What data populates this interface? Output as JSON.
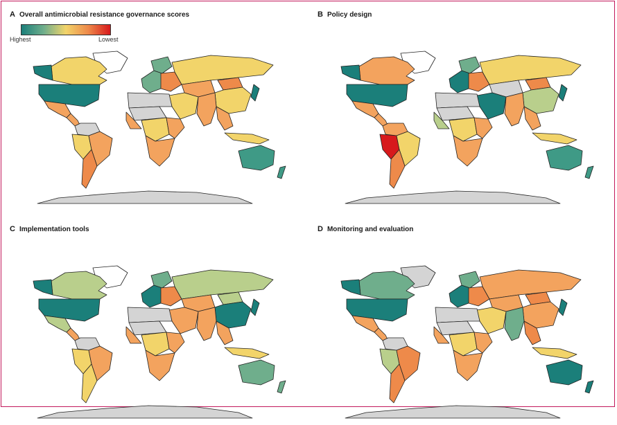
{
  "colors": {
    "highest": "#1b7f7a",
    "high": "#6fae8c",
    "mid_high": "#b9cf8c",
    "mid": "#f2d46a",
    "mid_low": "#f3a35e",
    "low": "#ee8a4a",
    "lowest": "#d7191c",
    "no_data": "#d4d4d4",
    "ocean": "#ffffff",
    "frame": "#c2185b"
  },
  "legend": {
    "high_label": "Highest",
    "low_label": "Lowest",
    "scale": [
      "#1b7f7a",
      "#6fae8c",
      "#f2d46a",
      "#ee8a4a",
      "#d7191c"
    ]
  },
  "panels": [
    {
      "letter": "A",
      "title": "Overall antimicrobial resistance governance scores",
      "regions": {
        "alaska": "#1b7f7a",
        "canada": "#f2d46a",
        "greenland": "#ffffff",
        "usa": "#1b7f7a",
        "mexico": "#f3a35e",
        "central_america": "#f3a35e",
        "colombia_venezuela": "#d4d4d4",
        "brazil": "#f3a35e",
        "peru_bolivia": "#f2d46a",
        "southern_cone": "#ee8a4a",
        "western_europe": "#6fae8c",
        "scandinavia": "#6fae8c",
        "eastern_europe": "#ee8a4a",
        "russia": "#f2d46a",
        "central_asia": "#f3a35e",
        "middle_east": "#f2d46a",
        "north_africa": "#d4d4d4",
        "sahel": "#d4d4d4",
        "west_africa": "#f3a35e",
        "central_africa": "#f2d46a",
        "east_africa": "#f3a35e",
        "southern_africa": "#f3a35e",
        "south_asia": "#f3a35e",
        "china": "#f2d46a",
        "mongolia": "#ee8a4a",
        "southeast_asia": "#f3a35e",
        "japan": "#1b7f7a",
        "indonesia": "#f2d46a",
        "australia": "#3f9a86",
        "new_zealand": "#3f9a86",
        "antarctica": "#d4d4d4"
      }
    },
    {
      "letter": "B",
      "title": "Policy design",
      "regions": {
        "alaska": "#1b7f7a",
        "canada": "#f3a35e",
        "greenland": "#ffffff",
        "usa": "#1b7f7a",
        "mexico": "#f3a35e",
        "central_america": "#f3a35e",
        "colombia_venezuela": "#f3a35e",
        "brazil": "#f2d46a",
        "peru_bolivia": "#d7191c",
        "southern_cone": "#ee8a4a",
        "western_europe": "#1b7f7a",
        "scandinavia": "#6fae8c",
        "eastern_europe": "#ee8a4a",
        "russia": "#f2d46a",
        "central_asia": "#d4d4d4",
        "middle_east": "#1b7f7a",
        "north_africa": "#d4d4d4",
        "sahel": "#d4d4d4",
        "west_africa": "#b9cf8c",
        "central_africa": "#f2d46a",
        "east_africa": "#f3a35e",
        "southern_africa": "#f3a35e",
        "south_asia": "#f3a35e",
        "china": "#b9cf8c",
        "mongolia": "#ee8a4a",
        "southeast_asia": "#f3a35e",
        "japan": "#1b7f7a",
        "indonesia": "#f2d46a",
        "australia": "#3f9a86",
        "new_zealand": "#3f9a86",
        "antarctica": "#d4d4d4"
      }
    },
    {
      "letter": "C",
      "title": "Implementation tools",
      "regions": {
        "alaska": "#1b7f7a",
        "canada": "#b9cf8c",
        "greenland": "#ffffff",
        "usa": "#1b7f7a",
        "mexico": "#b9cf8c",
        "central_america": "#f3a35e",
        "colombia_venezuela": "#d4d4d4",
        "brazil": "#f3a35e",
        "peru_bolivia": "#f2d46a",
        "southern_cone": "#f2d46a",
        "western_europe": "#1b7f7a",
        "scandinavia": "#6fae8c",
        "eastern_europe": "#ee8a4a",
        "russia": "#b9cf8c",
        "central_asia": "#f3a35e",
        "middle_east": "#f3a35e",
        "north_africa": "#d4d4d4",
        "sahel": "#d4d4d4",
        "west_africa": "#f3a35e",
        "central_africa": "#f2d46a",
        "east_africa": "#f3a35e",
        "southern_africa": "#f3a35e",
        "south_asia": "#f3a35e",
        "china": "#1b7f7a",
        "mongolia": "#b9cf8c",
        "southeast_asia": "#f3a35e",
        "japan": "#1b7f7a",
        "indonesia": "#f2d46a",
        "australia": "#6fae8c",
        "new_zealand": "#6fae8c",
        "antarctica": "#d4d4d4"
      }
    },
    {
      "letter": "D",
      "title": "Monitoring and evaluation",
      "regions": {
        "alaska": "#1b7f7a",
        "canada": "#6fae8c",
        "greenland": "#d4d4d4",
        "usa": "#1b7f7a",
        "mexico": "#f3a35e",
        "central_america": "#f3a35e",
        "colombia_venezuela": "#d4d4d4",
        "brazil": "#ee8a4a",
        "peru_bolivia": "#b9cf8c",
        "southern_cone": "#ee8a4a",
        "western_europe": "#1b7f7a",
        "scandinavia": "#6fae8c",
        "eastern_europe": "#ee8a4a",
        "russia": "#f3a35e",
        "central_asia": "#f3a35e",
        "middle_east": "#f2d46a",
        "north_africa": "#d4d4d4",
        "sahel": "#d4d4d4",
        "west_africa": "#f3a35e",
        "central_africa": "#f2d46a",
        "east_africa": "#f3a35e",
        "southern_africa": "#f3a35e",
        "south_asia": "#6fae8c",
        "china": "#f3a35e",
        "mongolia": "#ee8a4a",
        "southeast_asia": "#ee8a4a",
        "japan": "#1b7f7a",
        "indonesia": "#f2d46a",
        "australia": "#1b7f7a",
        "new_zealand": "#1b7f7a",
        "antarctica": "#d4d4d4"
      }
    }
  ]
}
